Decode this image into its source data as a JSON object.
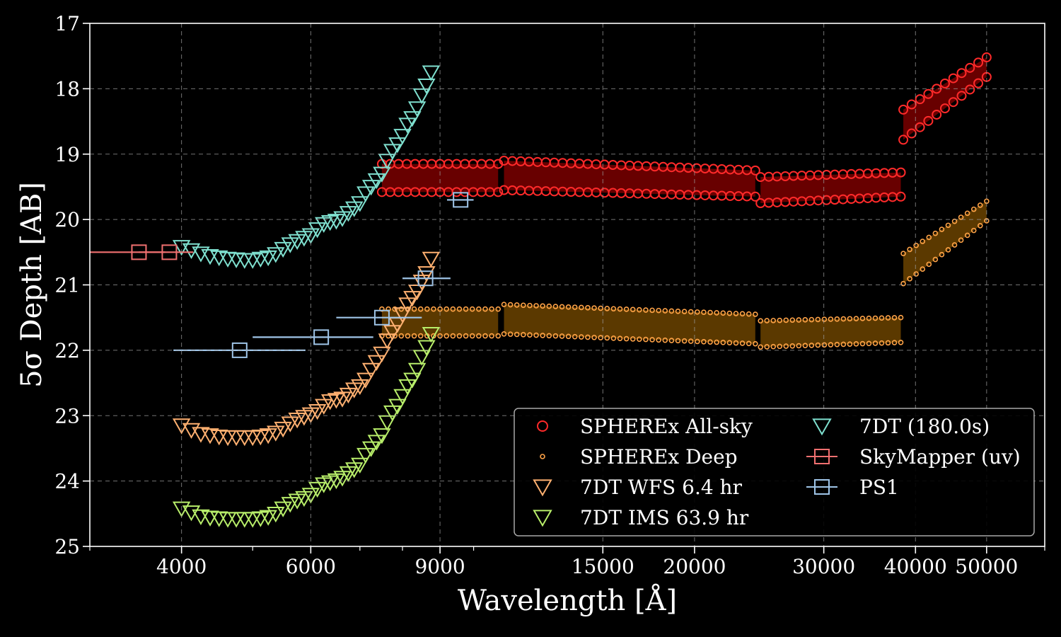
{
  "chart_data": {
    "type": "scatter",
    "xlabel": "Wavelength [Å]",
    "ylabel": "5σ Depth [AB]",
    "xscale": "log",
    "xlim": [
      3000,
      60000
    ],
    "ylim": [
      25,
      17
    ],
    "y_inverted": true,
    "grid": true,
    "legend_position": "lower-right",
    "legend_columns": 2,
    "xticks": [
      4000,
      6000,
      9000,
      15000,
      20000,
      30000,
      40000,
      50000
    ],
    "xtick_labels": [
      "4000",
      "6000",
      "9000",
      "15000",
      "20000",
      "30000",
      "40000",
      "50000"
    ],
    "yticks": [
      17,
      18,
      19,
      20,
      21,
      22,
      23,
      24,
      25
    ],
    "ytick_labels": [
      "17",
      "18",
      "19",
      "20",
      "21",
      "22",
      "23",
      "24",
      "25"
    ],
    "series": [
      {
        "name": "SPHEREx All-sky",
        "marker": "circle",
        "color": "#ff2a2a",
        "fill": "#7a0000",
        "bands": [
          {
            "x_range": [
              7500,
              10800
            ],
            "top": 19.15,
            "bottom": 19.58
          },
          {
            "x_range": [
              11000,
              24200
            ],
            "top": 19.1,
            "bottom": 19.55,
            "top_end": 19.25,
            "bottom_end": 19.65
          },
          {
            "x_range": [
              24600,
              38200
            ],
            "top": 19.35,
            "bottom": 19.75,
            "top_end": 19.28,
            "bottom_end": 19.65
          },
          {
            "x_range": [
              38500,
              50000
            ],
            "top": 18.32,
            "bottom": 18.78,
            "top_end": 17.52,
            "bottom_end": 17.82
          }
        ]
      },
      {
        "name": "SPHEREx Deep",
        "marker": "small-circle",
        "color": "#ffa347",
        "fill": "#6b4300",
        "bands": [
          {
            "x_range": [
              7500,
              10800
            ],
            "top": 21.37,
            "bottom": 21.78
          },
          {
            "x_range": [
              11000,
              24200
            ],
            "top": 21.3,
            "bottom": 21.75,
            "top_end": 21.45,
            "bottom_end": 21.9
          },
          {
            "x_range": [
              24600,
              38200
            ],
            "top": 21.55,
            "bottom": 21.95,
            "top_end": 21.5,
            "bottom_end": 21.88
          },
          {
            "x_range": [
              38500,
              50000
            ],
            "top": 20.52,
            "bottom": 20.98,
            "top_end": 19.72,
            "bottom_end": 20.02
          }
        ]
      },
      {
        "name": "7DT WFS 6.4 hr",
        "marker": "triangle-down",
        "color": "#ffb070",
        "points": [
          [
            4000,
            23.15
          ],
          [
            4125,
            23.22
          ],
          [
            4250,
            23.28
          ],
          [
            4375,
            23.3
          ],
          [
            4500,
            23.32
          ],
          [
            4625,
            23.33
          ],
          [
            4750,
            23.33
          ],
          [
            4875,
            23.33
          ],
          [
            5000,
            23.33
          ],
          [
            5125,
            23.32
          ],
          [
            5250,
            23.3
          ],
          [
            5375,
            23.26
          ],
          [
            5500,
            23.2
          ],
          [
            5625,
            23.12
          ],
          [
            5750,
            23.06
          ],
          [
            5875,
            23.02
          ],
          [
            6000,
            22.98
          ],
          [
            6125,
            22.93
          ],
          [
            6250,
            22.85
          ],
          [
            6375,
            22.78
          ],
          [
            6500,
            22.76
          ],
          [
            6625,
            22.74
          ],
          [
            6750,
            22.68
          ],
          [
            6875,
            22.6
          ],
          [
            7000,
            22.55
          ],
          [
            7125,
            22.45
          ],
          [
            7250,
            22.3
          ],
          [
            7375,
            22.18
          ],
          [
            7500,
            22.05
          ],
          [
            7625,
            21.85
          ],
          [
            7750,
            21.72
          ],
          [
            7875,
            21.6
          ],
          [
            8000,
            21.45
          ],
          [
            8125,
            21.3
          ],
          [
            8250,
            21.2
          ],
          [
            8375,
            21.1
          ],
          [
            8500,
            20.95
          ],
          [
            8625,
            20.82
          ],
          [
            8750,
            20.6
          ]
        ]
      },
      {
        "name": "7DT IMS 63.9 hr",
        "marker": "triangle-down",
        "color": "#b8ee6a",
        "points": [
          [
            4000,
            24.42
          ],
          [
            4125,
            24.48
          ],
          [
            4250,
            24.54
          ],
          [
            4375,
            24.56
          ],
          [
            4500,
            24.57
          ],
          [
            4625,
            24.58
          ],
          [
            4750,
            24.58
          ],
          [
            4875,
            24.58
          ],
          [
            5000,
            24.58
          ],
          [
            5125,
            24.57
          ],
          [
            5250,
            24.55
          ],
          [
            5375,
            24.5
          ],
          [
            5500,
            24.42
          ],
          [
            5625,
            24.35
          ],
          [
            5750,
            24.3
          ],
          [
            5875,
            24.26
          ],
          [
            6000,
            24.21
          ],
          [
            6125,
            24.12
          ],
          [
            6250,
            24.05
          ],
          [
            6375,
            24.02
          ],
          [
            6500,
            23.99
          ],
          [
            6625,
            23.95
          ],
          [
            6750,
            23.88
          ],
          [
            6875,
            23.82
          ],
          [
            7000,
            23.75
          ],
          [
            7125,
            23.6
          ],
          [
            7250,
            23.5
          ],
          [
            7375,
            23.4
          ],
          [
            7500,
            23.3
          ],
          [
            7625,
            23.1
          ],
          [
            7750,
            22.95
          ],
          [
            7875,
            22.85
          ],
          [
            8000,
            22.7
          ],
          [
            8125,
            22.55
          ],
          [
            8250,
            22.45
          ],
          [
            8375,
            22.3
          ],
          [
            8500,
            22.1
          ],
          [
            8625,
            21.95
          ],
          [
            8750,
            21.75
          ]
        ]
      },
      {
        "name": "7DT (180.0s)",
        "marker": "triangle-down",
        "color": "#7fe0cf",
        "points": [
          [
            4000,
            20.42
          ],
          [
            4125,
            20.47
          ],
          [
            4250,
            20.52
          ],
          [
            4375,
            20.56
          ],
          [
            4500,
            20.58
          ],
          [
            4625,
            20.6
          ],
          [
            4750,
            20.61
          ],
          [
            4875,
            20.62
          ],
          [
            5000,
            20.62
          ],
          [
            5125,
            20.6
          ],
          [
            5250,
            20.58
          ],
          [
            5375,
            20.53
          ],
          [
            5500,
            20.45
          ],
          [
            5625,
            20.38
          ],
          [
            5750,
            20.33
          ],
          [
            5875,
            20.28
          ],
          [
            6000,
            20.24
          ],
          [
            6125,
            20.15
          ],
          [
            6250,
            20.07
          ],
          [
            6375,
            20.04
          ],
          [
            6500,
            20.02
          ],
          [
            6625,
            19.98
          ],
          [
            6750,
            19.9
          ],
          [
            6875,
            19.83
          ],
          [
            7000,
            19.75
          ],
          [
            7125,
            19.6
          ],
          [
            7250,
            19.5
          ],
          [
            7375,
            19.4
          ],
          [
            7500,
            19.3
          ],
          [
            7625,
            19.1
          ],
          [
            7750,
            18.95
          ],
          [
            7875,
            18.85
          ],
          [
            8000,
            18.72
          ],
          [
            8125,
            18.55
          ],
          [
            8250,
            18.45
          ],
          [
            8375,
            18.3
          ],
          [
            8500,
            18.1
          ],
          [
            8625,
            17.95
          ],
          [
            8750,
            17.75
          ]
        ]
      },
      {
        "name": "SkyMapper (uv)",
        "marker": "square",
        "color": "#f07070",
        "points": [
          [
            3500,
            20.5
          ],
          [
            3850,
            20.5
          ]
        ],
        "xerr": [
          [
            3000,
            3800
          ],
          [
            3500,
            4150
          ]
        ]
      },
      {
        "name": "PS1",
        "marker": "square",
        "color": "#9fc5e8",
        "points": [
          [
            4800,
            22.0
          ],
          [
            6200,
            21.8
          ],
          [
            7500,
            21.5
          ],
          [
            8600,
            20.9
          ],
          [
            9600,
            19.7
          ]
        ],
        "xerr": [
          [
            3900,
            5900
          ],
          [
            5000,
            7300
          ],
          [
            6500,
            8500
          ],
          [
            8000,
            9300
          ],
          [
            9200,
            10000
          ]
        ]
      }
    ]
  }
}
